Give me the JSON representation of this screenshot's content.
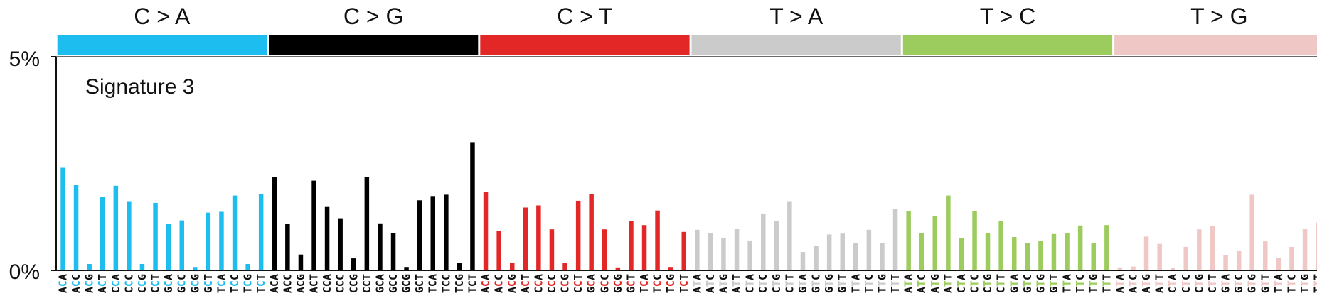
{
  "chart_data": {
    "type": "bar",
    "title": "Signature 3",
    "yticks": [
      "0%",
      "5%"
    ],
    "ylim": [
      0,
      5
    ],
    "grid": false,
    "categories_groups": [
      {
        "name": "C > A",
        "color": "#1ebdf0",
        "ref": "C"
      },
      {
        "name": "C > G",
        "color": "#000000",
        "ref": "C"
      },
      {
        "name": "C > T",
        "color": "#e32726",
        "ref": "C"
      },
      {
        "name": "T > A",
        "color": "#cbcbcb",
        "ref": "T"
      },
      {
        "name": "T > C",
        "color": "#9ccc5e",
        "ref": "T"
      },
      {
        "name": "T > G",
        "color": "#efc7c5",
        "ref": "T"
      }
    ],
    "contexts": [
      [
        "A",
        "A"
      ],
      [
        "A",
        "C"
      ],
      [
        "A",
        "G"
      ],
      [
        "A",
        "T"
      ],
      [
        "C",
        "A"
      ],
      [
        "C",
        "C"
      ],
      [
        "C",
        "G"
      ],
      [
        "C",
        "T"
      ],
      [
        "G",
        "A"
      ],
      [
        "G",
        "C"
      ],
      [
        "G",
        "G"
      ],
      [
        "G",
        "T"
      ],
      [
        "T",
        "A"
      ],
      [
        "T",
        "C"
      ],
      [
        "T",
        "G"
      ],
      [
        "T",
        "T"
      ]
    ],
    "values": [
      [
        2.4,
        2.0,
        0.15,
        1.72,
        1.98,
        1.62,
        0.15,
        1.58,
        1.08,
        1.17,
        0.08,
        1.35,
        1.37,
        1.75,
        0.15,
        1.78
      ],
      [
        2.18,
        1.08,
        0.37,
        2.1,
        1.5,
        1.22,
        0.28,
        2.18,
        1.1,
        0.88,
        0.08,
        1.64,
        1.74,
        1.77,
        0.17,
        3.0
      ],
      [
        1.83,
        0.92,
        0.18,
        1.47,
        1.52,
        0.96,
        0.18,
        1.63,
        1.79,
        0.96,
        0.07,
        1.16,
        1.06,
        1.4,
        0.08,
        0.9
      ],
      [
        0.95,
        0.88,
        0.76,
        0.98,
        0.7,
        1.33,
        1.15,
        1.62,
        0.43,
        0.58,
        0.84,
        0.86,
        0.64,
        0.95,
        0.64,
        1.43
      ],
      [
        1.38,
        0.88,
        1.27,
        1.75,
        0.75,
        1.38,
        0.88,
        1.16,
        0.78,
        0.64,
        0.69,
        0.85,
        0.88,
        1.05,
        0.64,
        1.06
      ],
      [
        0.07,
        0.09,
        0.79,
        0.62,
        0.06,
        0.55,
        0.96,
        1.04,
        0.35,
        0.45,
        1.77,
        0.68,
        0.29,
        0.55,
        0.98,
        1.12
      ]
    ]
  }
}
